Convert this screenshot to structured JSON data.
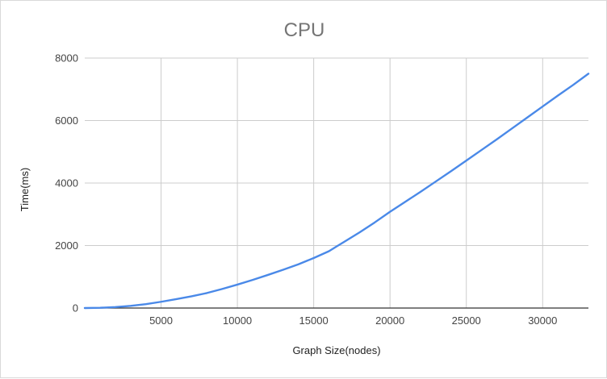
{
  "chart_data": {
    "type": "line",
    "title": "CPU",
    "xlabel": "Graph Size(nodes)",
    "ylabel": "Time(ms)",
    "xlim": [
      0,
      33000
    ],
    "ylim": [
      0,
      8000
    ],
    "x_ticks": [
      5000,
      10000,
      15000,
      20000,
      25000,
      30000
    ],
    "y_ticks": [
      0,
      2000,
      4000,
      6000,
      8000
    ],
    "grid": true,
    "legend": "none",
    "line_color": "#4a89e8",
    "series": [
      {
        "x": [
          0,
          1000,
          2000,
          3000,
          4000,
          5000,
          6000,
          7000,
          8000,
          9000,
          10000,
          11000,
          12000,
          13000,
          14000,
          15000,
          16000,
          16500,
          17000,
          18000,
          19000,
          20000,
          21000,
          22000,
          23000,
          24000,
          25000,
          26000,
          27000,
          28000,
          29000,
          30000,
          31000,
          32000,
          33000
        ],
        "y": [
          0,
          8,
          30,
          70,
          125,
          200,
          285,
          375,
          480,
          610,
          750,
          900,
          1060,
          1225,
          1400,
          1600,
          1820,
          1970,
          2120,
          2420,
          2740,
          3080,
          3400,
          3720,
          4050,
          4380,
          4720,
          5060,
          5400,
          5750,
          6100,
          6450,
          6800,
          7140,
          7500
        ]
      }
    ]
  }
}
